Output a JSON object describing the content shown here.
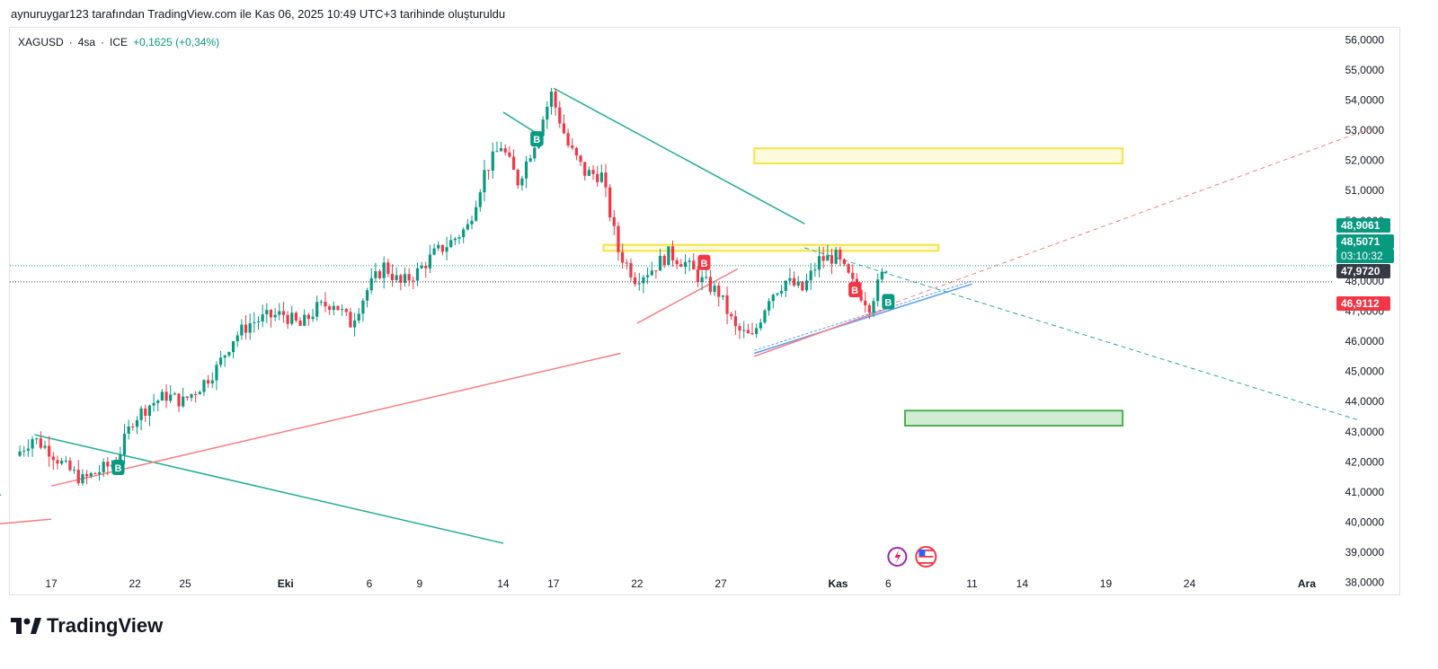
{
  "header": {
    "note": "aynuruygar123 tarafından TradingView.com ile Kas 06, 2025 10:49 UTC+3 tarihinde oluşturuldu"
  },
  "legend": {
    "symbol": "XAGUSD",
    "interval": "4sa",
    "exchange": "ICE",
    "separator": "·",
    "change": "+0,1625 (+0,34%)"
  },
  "brand": {
    "name": "TradingView"
  },
  "colors": {
    "up": "#089981",
    "down": "#f23645",
    "trend_green": "#22ab94",
    "trend_red": "#f77c80",
    "yellow": "#f5e342",
    "green_zone": "#4caf50",
    "blue_line": "#5b9cf6"
  },
  "chart_data": {
    "type": "candlestick",
    "title": "",
    "xlabel": "",
    "ylabel": "",
    "ylim": [
      37.6,
      56.4
    ],
    "y_ticks": [
      "56,0000",
      "55,0000",
      "54,0000",
      "53,0000",
      "52,0000",
      "51,0000",
      "50,0000",
      "49,0000",
      "48,0000",
      "47,0000",
      "46,0000",
      "45,0000",
      "44,0000",
      "43,0000",
      "42,0000",
      "41,0000",
      "40,0000",
      "39,0000",
      "38,0000"
    ],
    "x_ticks": [
      {
        "label": "17",
        "date": "2025-09-17"
      },
      {
        "label": "22",
        "date": "2025-09-22"
      },
      {
        "label": "25",
        "date": "2025-09-25"
      },
      {
        "label": "Eki",
        "date": "2025-10-01",
        "bold": true
      },
      {
        "label": "6",
        "date": "2025-10-06"
      },
      {
        "label": "9",
        "date": "2025-10-09"
      },
      {
        "label": "14",
        "date": "2025-10-14"
      },
      {
        "label": "17",
        "date": "2025-10-17"
      },
      {
        "label": "22",
        "date": "2025-10-22"
      },
      {
        "label": "27",
        "date": "2025-10-27"
      },
      {
        "label": "Kas",
        "date": "2025-11-03",
        "bold": true
      },
      {
        "label": "6",
        "date": "2025-11-06"
      },
      {
        "label": "11",
        "date": "2025-11-11"
      },
      {
        "label": "14",
        "date": "2025-11-14"
      },
      {
        "label": "19",
        "date": "2025-11-19"
      },
      {
        "label": "24",
        "date": "2025-11-24"
      },
      {
        "label": "Ara",
        "date": "2025-12-01",
        "bold": true
      }
    ],
    "price_labels": [
      {
        "text": "48,9061",
        "value": 48.9061,
        "color": "#089981"
      },
      {
        "text": "48,5071",
        "value": 48.5071,
        "color": "#089981"
      },
      {
        "text": "03:10:32",
        "value": 48.0,
        "color": "#089981"
      },
      {
        "text": "47,9720",
        "value": 47.972,
        "color": "#363a45"
      },
      {
        "text": "46,9112",
        "value": 46.9112,
        "color": "#f23645"
      }
    ],
    "close_path": [
      [
        "2025-09-15",
        42.2
      ],
      [
        "2025-09-16",
        42.8
      ],
      [
        "2025-09-17",
        42.4
      ],
      [
        "2025-09-18",
        41.8
      ],
      [
        "2025-09-19",
        41.4
      ],
      [
        "2025-09-20",
        41.7
      ],
      [
        "2025-09-21",
        42.0
      ],
      [
        "2025-09-22",
        43.4
      ],
      [
        "2025-09-23",
        43.9
      ],
      [
        "2025-09-24",
        44.2
      ],
      [
        "2025-09-25",
        44.0
      ],
      [
        "2025-09-26",
        44.5
      ],
      [
        "2025-09-27",
        45.1
      ],
      [
        "2025-09-28",
        46.1
      ],
      [
        "2025-09-29",
        46.6
      ],
      [
        "2025-09-30",
        46.8
      ],
      [
        "2025-10-01",
        46.9
      ],
      [
        "2025-10-02",
        46.5
      ],
      [
        "2025-10-03",
        47.1
      ],
      [
        "2025-10-04",
        47.3
      ],
      [
        "2025-10-05",
        46.6
      ],
      [
        "2025-10-06",
        47.7
      ],
      [
        "2025-10-07",
        48.5
      ],
      [
        "2025-10-08",
        47.9
      ],
      [
        "2025-10-09",
        48.3
      ],
      [
        "2025-10-10",
        48.9
      ],
      [
        "2025-10-11",
        49.3
      ],
      [
        "2025-10-12",
        49.8
      ],
      [
        "2025-10-13",
        51.6
      ],
      [
        "2025-10-14",
        52.5
      ],
      [
        "2025-10-15",
        51.3
      ],
      [
        "2025-10-16",
        52.6
      ],
      [
        "2025-10-17",
        54.2
      ],
      [
        "2025-10-18",
        52.5
      ],
      [
        "2025-10-19",
        51.6
      ],
      [
        "2025-10-20",
        51.5
      ],
      [
        "2025-10-21",
        49.0
      ],
      [
        "2025-10-22",
        48.1
      ],
      [
        "2025-10-23",
        48.4
      ],
      [
        "2025-10-24",
        48.9
      ],
      [
        "2025-10-25",
        48.6
      ],
      [
        "2025-10-26",
        48.0
      ],
      [
        "2025-10-27",
        47.6
      ],
      [
        "2025-10-28",
        46.4
      ],
      [
        "2025-10-29",
        46.1
      ],
      [
        "2025-10-30",
        47.5
      ],
      [
        "2025-10-31",
        48.0
      ],
      [
        "2025-11-01",
        47.7
      ],
      [
        "2025-11-02",
        48.7
      ],
      [
        "2025-11-03",
        48.8
      ],
      [
        "2025-11-04",
        47.9
      ],
      [
        "2025-11-05",
        47.2
      ],
      [
        "2025-11-06",
        48.5
      ]
    ],
    "zones": [
      {
        "type": "yellow",
        "from": "2025-10-29",
        "to": "2025-11-20",
        "top": 52.4,
        "bottom": 51.9
      },
      {
        "type": "yellow",
        "from": "2025-10-20",
        "to": "2025-11-09",
        "top": 49.2,
        "bottom": 49.0
      },
      {
        "type": "green",
        "from": "2025-11-07",
        "to": "2025-11-20",
        "top": 43.7,
        "bottom": 43.2
      }
    ],
    "signals": [
      {
        "text": "B",
        "date": "2025-09-21",
        "value": 41.8,
        "color": "#089981"
      },
      {
        "text": "B",
        "date": "2025-10-16",
        "value": 52.7,
        "color": "#089981"
      },
      {
        "text": "B",
        "date": "2025-10-26",
        "value": 48.6,
        "color": "#f23645"
      },
      {
        "text": "B",
        "date": "2025-11-04",
        "value": 47.7,
        "color": "#f23645"
      },
      {
        "text": "B",
        "date": "2025-11-06",
        "value": 47.3,
        "color": "#089981"
      }
    ]
  }
}
